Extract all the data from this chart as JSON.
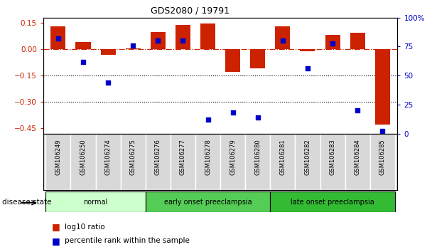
{
  "title": "GDS2080 / 19791",
  "samples": [
    "GSM106249",
    "GSM106250",
    "GSM106274",
    "GSM106275",
    "GSM106276",
    "GSM106277",
    "GSM106278",
    "GSM106279",
    "GSM106280",
    "GSM106281",
    "GSM106282",
    "GSM106283",
    "GSM106284",
    "GSM106285"
  ],
  "log10_ratio": [
    0.13,
    0.04,
    -0.03,
    0.005,
    0.1,
    0.14,
    0.148,
    -0.13,
    -0.11,
    0.13,
    -0.01,
    0.08,
    0.095,
    -0.43
  ],
  "percentile_rank": [
    82,
    62,
    44,
    76,
    80,
    80,
    12,
    18,
    14,
    80,
    56,
    78,
    20,
    2
  ],
  "bar_color": "#cc2200",
  "dot_color": "#0000cc",
  "groups": [
    {
      "label": "normal",
      "start": 0,
      "end": 4,
      "color": "#ccffcc"
    },
    {
      "label": "early onset preeclampsia",
      "start": 4,
      "end": 9,
      "color": "#55cc55"
    },
    {
      "label": "late onset preeclampsia",
      "start": 9,
      "end": 14,
      "color": "#33bb33"
    }
  ],
  "ylim_left": [
    -0.48,
    0.18
  ],
  "ylim_right": [
    0,
    100
  ],
  "yticks_left": [
    -0.45,
    -0.3,
    -0.15,
    0.0,
    0.15
  ],
  "yticks_right": [
    0,
    25,
    50,
    75,
    100
  ],
  "ytick_labels_right": [
    "0",
    "25",
    "50",
    "75",
    "100%"
  ],
  "hline_y": 0.0,
  "dotted_lines": [
    -0.15,
    -0.3
  ],
  "background_color": "#ffffff",
  "disease_state_label": "disease state"
}
